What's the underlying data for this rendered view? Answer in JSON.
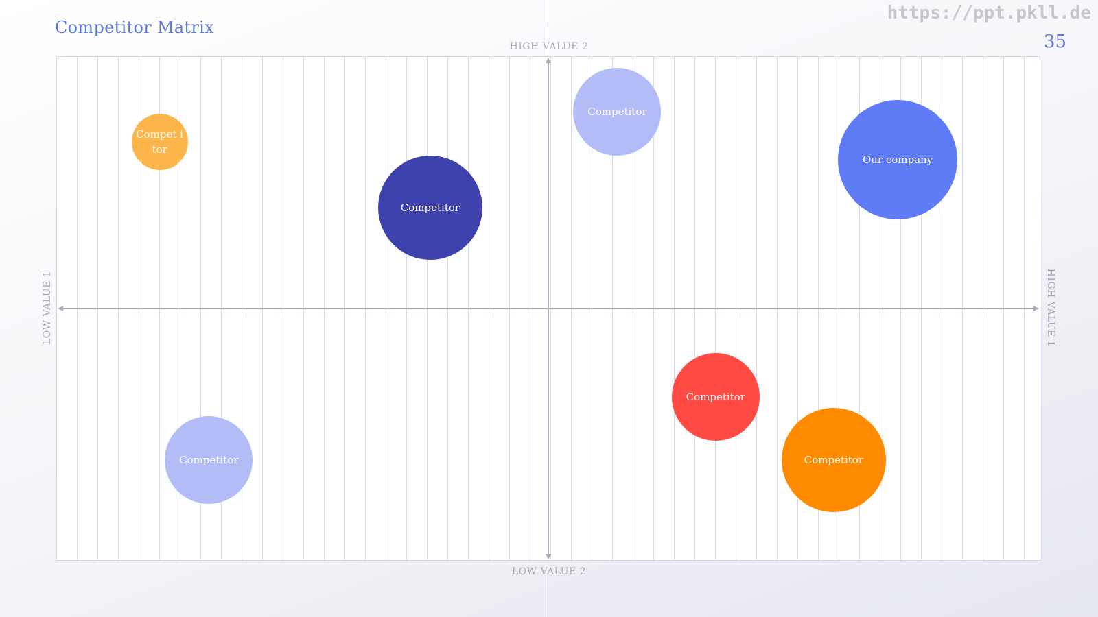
{
  "slide": {
    "title": "Competitor Matrix",
    "page_number": "35",
    "watermark": "https://ppt.pkll.de"
  },
  "axes": {
    "top": "HIGH VALUE 2",
    "bottom": "LOW VALUE 2",
    "left": "LOW VALUE 1",
    "right": "HIGH VALUE 1"
  },
  "colors": {
    "title": "#5f7be0",
    "axis": "#aaaab8",
    "grid": "#d8d9e4"
  },
  "bubbles": [
    {
      "label": "Compet itor",
      "color": "#fbb54a",
      "value1": -0.79,
      "value2": 0.66,
      "size": 82
    },
    {
      "label": "Competitor",
      "color": "#3e42ad",
      "value1": -0.24,
      "value2": 0.4,
      "size": 152
    },
    {
      "label": "Competitor",
      "color": "#b3bcf7",
      "value1": 0.14,
      "value2": 0.78,
      "size": 128
    },
    {
      "label": "Our company",
      "color": "#5f7bf6",
      "value1": 0.71,
      "value2": 0.59,
      "size": 174
    },
    {
      "label": "Competitor",
      "color": "#b3bcf7",
      "value1": -0.69,
      "value2": -0.6,
      "size": 128
    },
    {
      "label": "Competitor",
      "color": "#ff4b43",
      "value1": 0.34,
      "value2": -0.35,
      "size": 128
    },
    {
      "label": "Competitor",
      "color": "#ff8b00",
      "value1": 0.58,
      "value2": -0.6,
      "size": 152
    }
  ]
}
